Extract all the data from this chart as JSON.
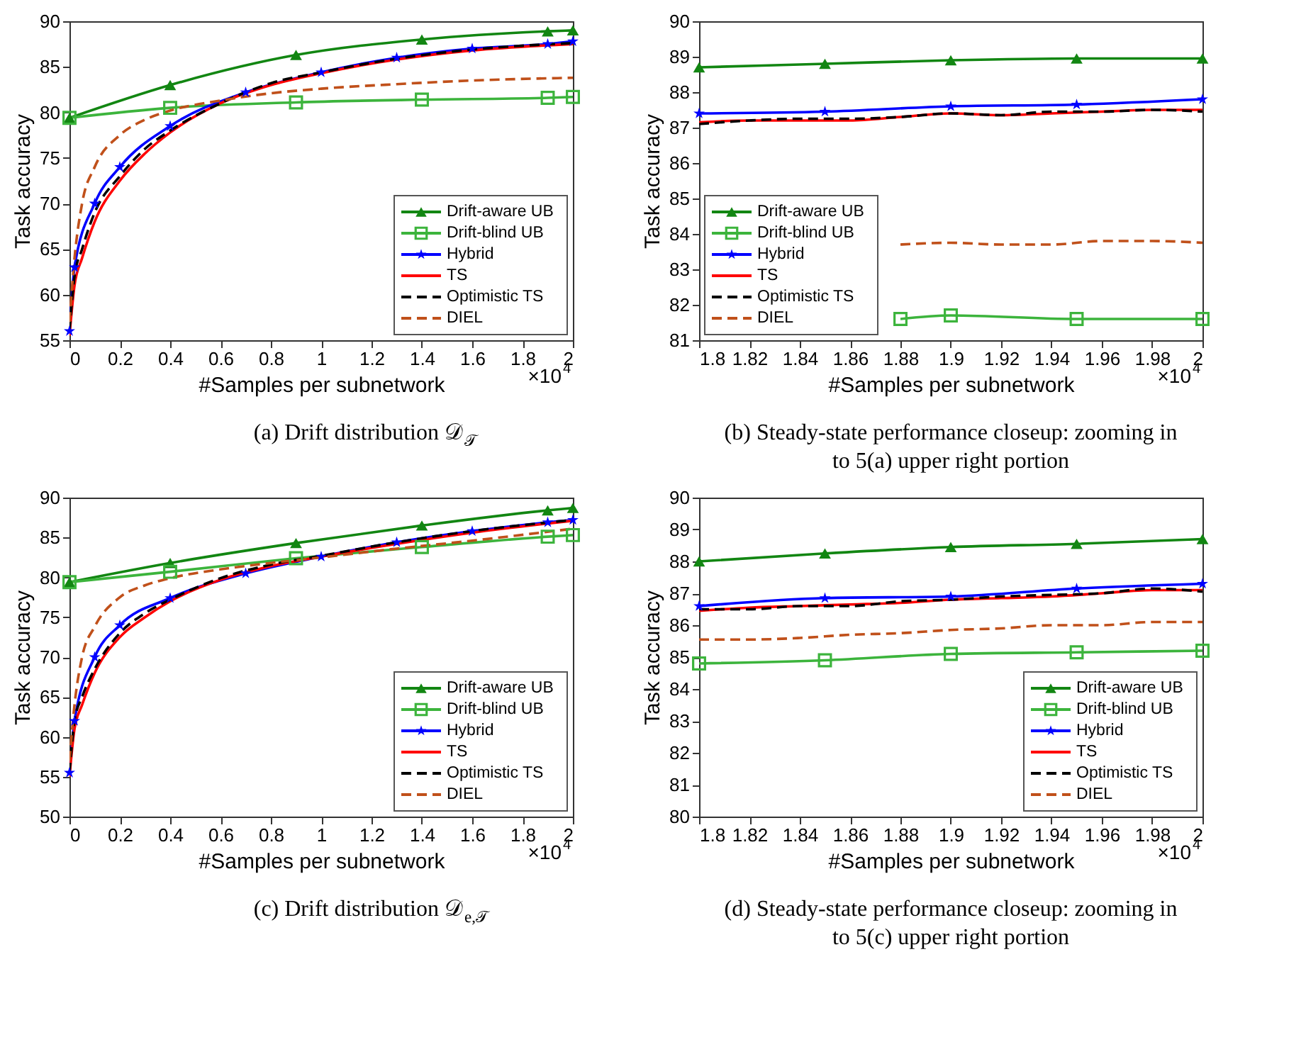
{
  "chart_data": [
    {
      "type": "line",
      "title": "(a) Drift distribution 𝒟$_{𝒯}$",
      "xlabel": "#Samples per subnetwork",
      "ylabel": "Task accuracy",
      "annotations": [
        "×10$^{4}$"
      ],
      "xlim": [
        0,
        2
      ],
      "xticks": [
        0,
        0.2,
        0.4,
        0.6,
        0.8,
        1,
        1.2,
        1.4,
        1.6,
        1.8,
        2
      ],
      "ylim": [
        55,
        90
      ],
      "yticks": [
        55,
        60,
        65,
        70,
        75,
        80,
        85,
        90
      ],
      "legend": "bottom right",
      "series": [
        {
          "name": "Drift-aware UB",
          "color": "#128612",
          "marker": "triangle",
          "line_style": "solid",
          "x": [
            0,
            0.4,
            0.9,
            1.4,
            1.9,
            2
          ],
          "values": [
            79.4,
            83,
            86.3,
            88,
            88.9,
            89.0
          ]
        },
        {
          "name": "Drift-blind UB",
          "color": "#3cb43c",
          "marker": "square",
          "line_style": "solid",
          "x": [
            0,
            0.4,
            0.9,
            1.4,
            1.9,
            2
          ],
          "values": [
            79.4,
            80.5,
            81.1,
            81.4,
            81.6,
            81.7
          ]
        },
        {
          "name": "Hybrid",
          "color": "#0000ff",
          "marker": "star",
          "line_style": "solid",
          "x": [
            0,
            0.02,
            0.1,
            0.2,
            0.4,
            0.7,
            1,
            1.3,
            1.6,
            1.9,
            2
          ],
          "values": [
            56,
            63,
            70,
            74,
            78.5,
            82.2,
            84.4,
            86,
            87,
            87.5,
            87.8
          ]
        },
        {
          "name": "TS",
          "color": "#ff0000",
          "marker": "none",
          "line_style": "solid",
          "x": [
            0,
            0.02,
            0.05,
            0.1,
            0.2,
            0.3,
            0.4,
            0.6,
            0.8,
            1,
            1.3,
            1.6,
            2
          ],
          "values": [
            55.5,
            61,
            64,
            68,
            72.5,
            75.5,
            77.8,
            81,
            83,
            84.3,
            85.8,
            86.8,
            87.5
          ]
        },
        {
          "name": "Optimistic TS",
          "color": "#000000",
          "marker": "none",
          "line_style": "dashed",
          "x": [
            0,
            0.02,
            0.05,
            0.1,
            0.2,
            0.3,
            0.4,
            0.6,
            0.8,
            1,
            1.3,
            1.6,
            2
          ],
          "values": [
            56,
            62,
            65,
            69,
            73,
            76,
            78,
            81,
            83.2,
            84.4,
            85.9,
            86.9,
            87.6
          ]
        },
        {
          "name": "DIEL",
          "color": "#c0501a",
          "marker": "none",
          "line_style": "dashed",
          "x": [
            0,
            0.02,
            0.05,
            0.1,
            0.2,
            0.3,
            0.4,
            0.6,
            0.8,
            1,
            1.3,
            1.6,
            2
          ],
          "values": [
            57,
            64,
            70,
            74,
            77.5,
            79.2,
            80.2,
            81.3,
            82.1,
            82.6,
            83.1,
            83.5,
            83.8
          ]
        }
      ]
    },
    {
      "type": "line",
      "title": "(b) Steady-state performance closeup: zooming in to 5(a) upper right portion",
      "xlabel": "#Samples per subnetwork",
      "ylabel": "Task accuracy",
      "annotations": [
        "×10$^{4}$"
      ],
      "xlim": [
        1.8,
        2
      ],
      "xticks": [
        1.8,
        1.82,
        1.84,
        1.86,
        1.88,
        1.9,
        1.92,
        1.94,
        1.96,
        1.98,
        2
      ],
      "ylim": [
        81,
        90
      ],
      "yticks": [
        81,
        82,
        83,
        84,
        85,
        86,
        87,
        88,
        89,
        90
      ],
      "legend": "bottom left",
      "series": [
        {
          "name": "Drift-aware UB",
          "color": "#128612",
          "marker": "triangle",
          "line_style": "solid",
          "x": [
            1.8,
            1.85,
            1.9,
            1.95,
            2
          ],
          "values": [
            88.7,
            88.8,
            88.9,
            88.95,
            88.95
          ]
        },
        {
          "name": "Drift-blind UB",
          "color": "#3cb43c",
          "marker": "square",
          "line_style": "solid",
          "x": [
            1.88,
            1.9,
            1.95,
            2
          ],
          "values": [
            81.6,
            81.7,
            81.6,
            81.6
          ]
        },
        {
          "name": "Hybrid",
          "color": "#0000ff",
          "marker": "star",
          "line_style": "solid",
          "x": [
            1.8,
            1.85,
            1.9,
            1.95,
            2
          ],
          "values": [
            87.4,
            87.45,
            87.6,
            87.65,
            87.8
          ]
        },
        {
          "name": "TS",
          "color": "#ff0000",
          "marker": "none",
          "line_style": "solid",
          "x": [
            1.8,
            1.82,
            1.84,
            1.86,
            1.88,
            1.9,
            1.92,
            1.94,
            1.96,
            1.98,
            2
          ],
          "values": [
            87.15,
            87.2,
            87.2,
            87.2,
            87.3,
            87.4,
            87.35,
            87.4,
            87.45,
            87.5,
            87.5
          ]
        },
        {
          "name": "Optimistic TS",
          "color": "#000000",
          "marker": "none",
          "line_style": "dashed",
          "x": [
            1.8,
            1.82,
            1.84,
            1.86,
            1.88,
            1.9,
            1.92,
            1.94,
            1.96,
            1.98,
            2
          ],
          "values": [
            87.1,
            87.2,
            87.25,
            87.25,
            87.3,
            87.4,
            87.35,
            87.45,
            87.45,
            87.5,
            87.45
          ]
        },
        {
          "name": "DIEL",
          "color": "#c0501a",
          "marker": "none",
          "line_style": "dashed",
          "x": [
            1.88,
            1.9,
            1.92,
            1.94,
            1.96,
            1.98,
            2
          ],
          "values": [
            83.7,
            83.75,
            83.7,
            83.7,
            83.8,
            83.8,
            83.75
          ]
        }
      ]
    },
    {
      "type": "line",
      "title": "(c) Drift distribution 𝒟$_{e,𝒯}$",
      "xlabel": "#Samples per subnetwork",
      "ylabel": "Task accuracy",
      "annotations": [
        "×10$^{4}$"
      ],
      "xlim": [
        0,
        2
      ],
      "xticks": [
        0,
        0.2,
        0.4,
        0.6,
        0.8,
        1,
        1.2,
        1.4,
        1.6,
        1.8,
        2
      ],
      "ylim": [
        50,
        90
      ],
      "yticks": [
        50,
        55,
        60,
        65,
        70,
        75,
        80,
        85,
        90
      ],
      "legend": "bottom right",
      "series": [
        {
          "name": "Drift-aware UB",
          "color": "#128612",
          "marker": "triangle",
          "line_style": "solid",
          "x": [
            0,
            0.4,
            0.9,
            1.4,
            1.9,
            2
          ],
          "values": [
            79.4,
            81.8,
            84.3,
            86.5,
            88.4,
            88.7
          ]
        },
        {
          "name": "Drift-blind UB",
          "color": "#3cb43c",
          "marker": "square",
          "line_style": "solid",
          "x": [
            0,
            0.4,
            0.9,
            1.4,
            1.9,
            2
          ],
          "values": [
            79.4,
            80.7,
            82.4,
            83.8,
            85.1,
            85.3
          ]
        },
        {
          "name": "Hybrid",
          "color": "#0000ff",
          "marker": "star",
          "line_style": "solid",
          "x": [
            0,
            0.02,
            0.1,
            0.2,
            0.4,
            0.7,
            1,
            1.3,
            1.6,
            1.9,
            2
          ],
          "values": [
            55.5,
            62,
            70,
            74,
            77.4,
            80.5,
            82.6,
            84.4,
            85.8,
            86.9,
            87.2
          ]
        },
        {
          "name": "TS",
          "color": "#ff0000",
          "marker": "none",
          "line_style": "solid",
          "x": [
            0,
            0.02,
            0.05,
            0.1,
            0.2,
            0.3,
            0.4,
            0.6,
            0.8,
            1,
            1.3,
            1.6,
            2
          ],
          "values": [
            55,
            61,
            64,
            68,
            72.5,
            75,
            77,
            79.7,
            81.4,
            82.6,
            84.2,
            85.6,
            87.1
          ]
        },
        {
          "name": "Optimistic TS",
          "color": "#000000",
          "marker": "none",
          "line_style": "dashed",
          "x": [
            0,
            0.02,
            0.05,
            0.1,
            0.2,
            0.3,
            0.4,
            0.6,
            0.8,
            1,
            1.3,
            1.6,
            2
          ],
          "values": [
            55.5,
            62,
            65,
            68.5,
            73,
            75.5,
            77.2,
            79.9,
            81.6,
            82.7,
            84.4,
            85.8,
            87.2
          ]
        },
        {
          "name": "DIEL",
          "color": "#c0501a",
          "marker": "none",
          "line_style": "dashed",
          "x": [
            0,
            0.02,
            0.05,
            0.1,
            0.2,
            0.3,
            0.4,
            0.6,
            0.8,
            1,
            1.3,
            1.6,
            2
          ],
          "values": [
            57,
            64,
            70,
            73.8,
            77.5,
            79,
            79.9,
            81,
            81.8,
            82.5,
            83.6,
            84.6,
            86.1
          ]
        }
      ]
    },
    {
      "type": "line",
      "title": "(d) Steady-state performance closeup: zooming in to 5(c) upper right portion",
      "xlabel": "#Samples per subnetwork",
      "ylabel": "Task accuracy",
      "annotations": [
        "×10$^{4}$"
      ],
      "xlim": [
        1.8,
        2
      ],
      "xticks": [
        1.8,
        1.82,
        1.84,
        1.86,
        1.88,
        1.9,
        1.92,
        1.94,
        1.96,
        1.98,
        2
      ],
      "ylim": [
        80,
        90
      ],
      "yticks": [
        80,
        81,
        82,
        83,
        84,
        85,
        86,
        87,
        88,
        89,
        90
      ],
      "legend": "bottom right",
      "series": [
        {
          "name": "Drift-aware UB",
          "color": "#128612",
          "marker": "triangle",
          "line_style": "solid",
          "x": [
            1.8,
            1.85,
            1.9,
            1.95,
            2
          ],
          "values": [
            88.0,
            88.25,
            88.45,
            88.55,
            88.7
          ]
        },
        {
          "name": "Drift-blind UB",
          "color": "#3cb43c",
          "marker": "square",
          "line_style": "solid",
          "x": [
            1.8,
            1.85,
            1.9,
            1.95,
            2
          ],
          "values": [
            84.8,
            84.9,
            85.1,
            85.15,
            85.2
          ]
        },
        {
          "name": "Hybrid",
          "color": "#0000ff",
          "marker": "star",
          "line_style": "solid",
          "x": [
            1.8,
            1.85,
            1.9,
            1.95,
            2
          ],
          "values": [
            86.6,
            86.85,
            86.9,
            87.15,
            87.3
          ]
        },
        {
          "name": "TS",
          "color": "#ff0000",
          "marker": "none",
          "line_style": "solid",
          "x": [
            1.8,
            1.82,
            1.84,
            1.86,
            1.88,
            1.9,
            1.92,
            1.94,
            1.96,
            1.98,
            2
          ],
          "values": [
            86.45,
            86.55,
            86.6,
            86.65,
            86.7,
            86.8,
            86.85,
            86.9,
            87.0,
            87.1,
            87.1
          ]
        },
        {
          "name": "Optimistic TS",
          "color": "#000000",
          "marker": "none",
          "line_style": "dashed",
          "x": [
            1.8,
            1.82,
            1.84,
            1.86,
            1.88,
            1.9,
            1.92,
            1.94,
            1.96,
            1.98,
            2
          ],
          "values": [
            86.5,
            86.5,
            86.6,
            86.6,
            86.75,
            86.8,
            86.9,
            86.95,
            87.0,
            87.15,
            87.05
          ]
        },
        {
          "name": "DIEL",
          "color": "#c0501a",
          "marker": "none",
          "line_style": "dashed",
          "x": [
            1.8,
            1.82,
            1.84,
            1.86,
            1.88,
            1.9,
            1.92,
            1.94,
            1.96,
            1.98,
            2
          ],
          "values": [
            85.55,
            85.55,
            85.6,
            85.7,
            85.75,
            85.85,
            85.9,
            86.0,
            86.0,
            86.1,
            86.1
          ]
        }
      ]
    }
  ]
}
